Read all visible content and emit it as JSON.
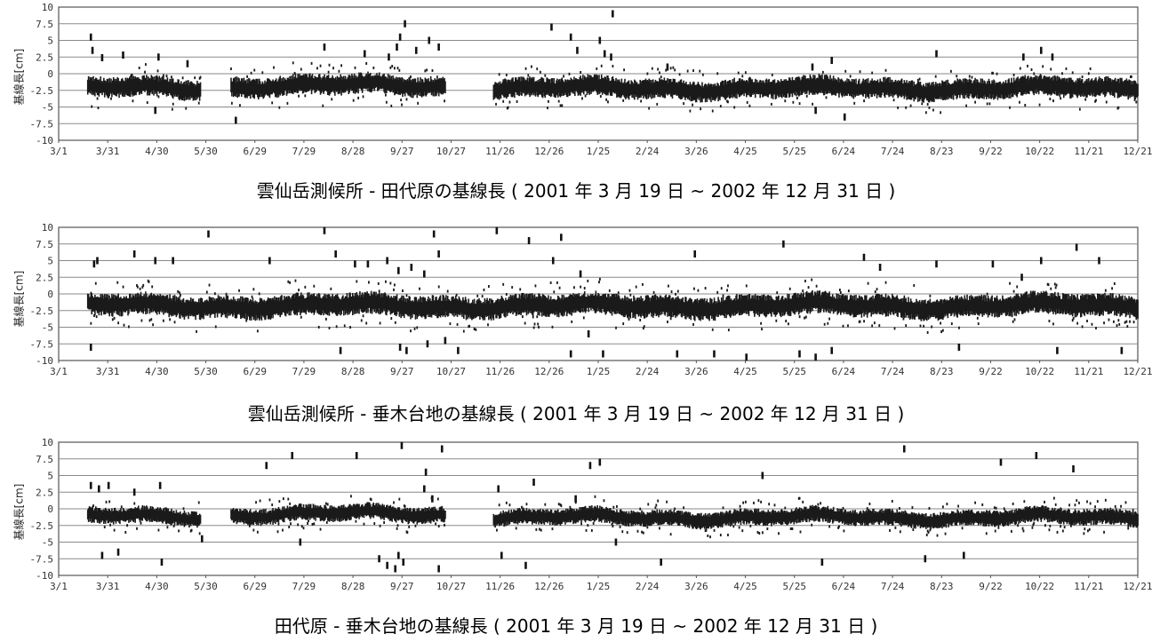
{
  "chart_data": [
    {
      "type": "scatter",
      "title": "雲仙岳測候所 - 田代原の基線長 ( 2001 年 3 月 19 日 ~ 2002 年 12 月 31 日 )",
      "ylabel": "基線長[cm]",
      "ylim": [
        -10,
        10
      ],
      "yticks": [
        "10",
        "7.5",
        "5",
        "2.5",
        "0",
        "-2.5",
        "-5",
        "-7.5",
        "-10"
      ],
      "xticks": [
        "3/1",
        "3/31",
        "4/30",
        "5/30",
        "6/29",
        "7/29",
        "8/28",
        "9/27",
        "10/27",
        "11/26",
        "12/26",
        "1/25",
        "2/24",
        "3/26",
        "4/25",
        "5/25",
        "6/24",
        "7/24",
        "8/23",
        "9/22",
        "10/22",
        "11/21",
        "12/21"
      ],
      "x_range_days": [
        0,
        670
      ],
      "grid": true,
      "series": [
        {
          "segments": [
            [
              18,
              88,
              -2.2
            ],
            [
              107,
              240,
              -1.8
            ],
            [
              270,
              670,
              -2.2
            ]
          ],
          "noise": 1.0,
          "outliers": [
            [
              20,
              5.5
            ],
            [
              21,
              3.5
            ],
            [
              27,
              2.4
            ],
            [
              40,
              2.8
            ],
            [
              60,
              -5.5
            ],
            [
              62,
              2.5
            ],
            [
              80,
              1.5
            ],
            [
              110,
              -7
            ],
            [
              165,
              4
            ],
            [
              190,
              3
            ],
            [
              205,
              2.5
            ],
            [
              210,
              4
            ],
            [
              212,
              5.5
            ],
            [
              215,
              7.5
            ],
            [
              222,
              3.5
            ],
            [
              230,
              5
            ],
            [
              236,
              4
            ],
            [
              306,
              7
            ],
            [
              318,
              5.5
            ],
            [
              322,
              3.5
            ],
            [
              336,
              5
            ],
            [
              339,
              3
            ],
            [
              344,
              9
            ],
            [
              343,
              2.5
            ],
            [
              378,
              1
            ],
            [
              468,
              1
            ],
            [
              470,
              -5.5
            ],
            [
              480,
              2
            ],
            [
              488,
              -6.5
            ],
            [
              545,
              3
            ],
            [
              599,
              2.5
            ],
            [
              610,
              3.5
            ],
            [
              617,
              2.5
            ]
          ]
        }
      ]
    },
    {
      "type": "scatter",
      "title": "雲仙岳測候所 - 垂木台地の基線長 ( 2001 年 3 月 19 日 ~ 2002 年 12 月 31 日 )",
      "ylabel": "基線長[cm]",
      "ylim": [
        -10,
        10
      ],
      "yticks": [
        "10",
        "7.5",
        "5",
        "2.5",
        "0",
        "-2.5",
        "-5",
        "-7.5",
        "-10"
      ],
      "xticks": [
        "3/1",
        "3/31",
        "4/30",
        "5/30",
        "6/29",
        "7/29",
        "8/28",
        "9/27",
        "10/27",
        "11/26",
        "12/26",
        "1/25",
        "2/24",
        "3/26",
        "4/25",
        "5/25",
        "6/24",
        "7/24",
        "8/23",
        "9/22",
        "10/22",
        "11/21",
        "12/21"
      ],
      "x_range_days": [
        0,
        670
      ],
      "grid": true,
      "series": [
        {
          "segments": [
            [
              18,
              670,
              -1.8
            ]
          ],
          "noise": 1.1,
          "outliers": [
            [
              20,
              -8
            ],
            [
              22,
              4.5
            ],
            [
              24,
              5
            ],
            [
              47,
              6
            ],
            [
              60,
              5
            ],
            [
              71,
              5
            ],
            [
              93,
              9
            ],
            [
              131,
              5
            ],
            [
              165,
              9.5
            ],
            [
              172,
              6
            ],
            [
              175,
              -8.5
            ],
            [
              184,
              4.5
            ],
            [
              192,
              4.5
            ],
            [
              204,
              5
            ],
            [
              211,
              3.5
            ],
            [
              212,
              -8
            ],
            [
              216,
              -8.5
            ],
            [
              219,
              4
            ],
            [
              227,
              3
            ],
            [
              229,
              -7.5
            ],
            [
              233,
              9
            ],
            [
              236,
              6
            ],
            [
              240,
              -7
            ],
            [
              248,
              -8.5
            ],
            [
              272,
              9.5
            ],
            [
              292,
              8
            ],
            [
              307,
              5
            ],
            [
              312,
              8.5
            ],
            [
              318,
              -9
            ],
            [
              324,
              3
            ],
            [
              329,
              -6
            ],
            [
              338,
              -9
            ],
            [
              384,
              -9
            ],
            [
              395,
              6
            ],
            [
              407,
              -9
            ],
            [
              427,
              -9.5
            ],
            [
              450,
              7.5
            ],
            [
              460,
              -9
            ],
            [
              470,
              -9.5
            ],
            [
              480,
              -8.5
            ],
            [
              500,
              5.5
            ],
            [
              510,
              4
            ],
            [
              545,
              4.5
            ],
            [
              559,
              -8
            ],
            [
              580,
              4.5
            ],
            [
              598,
              2.5
            ],
            [
              610,
              5
            ],
            [
              620,
              -8.5
            ],
            [
              632,
              7
            ],
            [
              646,
              5
            ],
            [
              660,
              -8.5
            ]
          ]
        }
      ]
    },
    {
      "type": "scatter",
      "title": "田代原 - 垂木台地の基線長 ( 2001 年 3 月 19 日 ~ 2002 年 12 月 31 日 )",
      "ylabel": "基線長[cm]",
      "ylim": [
        -10,
        10
      ],
      "yticks": [
        "10",
        "7.5",
        "5",
        "2.5",
        "0",
        "-2.5",
        "-5",
        "-7.5",
        "-10"
      ],
      "xticks": [
        "3/1",
        "3/31",
        "4/30",
        "5/30",
        "6/29",
        "7/29",
        "8/28",
        "9/27",
        "10/27",
        "11/26",
        "12/26",
        "1/25",
        "2/24",
        "3/26",
        "4/25",
        "5/25",
        "6/24",
        "7/24",
        "8/23",
        "9/22",
        "10/22",
        "11/21",
        "12/21"
      ],
      "x_range_days": [
        0,
        670
      ],
      "grid": true,
      "series": [
        {
          "segments": [
            [
              18,
              88,
              -1.2
            ],
            [
              107,
              240,
              -0.8
            ],
            [
              270,
              670,
              -1.3
            ]
          ],
          "noise": 0.8,
          "outliers": [
            [
              20,
              3.5
            ],
            [
              25,
              3
            ],
            [
              27,
              -7
            ],
            [
              31,
              3.5
            ],
            [
              37,
              -6.5
            ],
            [
              47,
              2.5
            ],
            [
              63,
              3.5
            ],
            [
              64,
              -8
            ],
            [
              89,
              -4.5
            ],
            [
              129,
              6.5
            ],
            [
              145,
              8
            ],
            [
              150,
              -5
            ],
            [
              185,
              8
            ],
            [
              199,
              -7.5
            ],
            [
              204,
              -8.5
            ],
            [
              209,
              -9
            ],
            [
              211,
              -7
            ],
            [
              213,
              9.5
            ],
            [
              214,
              -8
            ],
            [
              227,
              3
            ],
            [
              228,
              5.5
            ],
            [
              232,
              1.5
            ],
            [
              236,
              -9
            ],
            [
              238,
              9
            ],
            [
              273,
              3
            ],
            [
              275,
              -7
            ],
            [
              290,
              -8.5
            ],
            [
              295,
              4
            ],
            [
              321,
              1.5
            ],
            [
              330,
              6.5
            ],
            [
              336,
              7
            ],
            [
              346,
              -5
            ],
            [
              374,
              -8
            ],
            [
              437,
              5
            ],
            [
              474,
              -8
            ],
            [
              525,
              9
            ],
            [
              538,
              -7.5
            ],
            [
              562,
              -7
            ],
            [
              585,
              7
            ],
            [
              607,
              8
            ],
            [
              630,
              6
            ]
          ]
        }
      ]
    }
  ]
}
